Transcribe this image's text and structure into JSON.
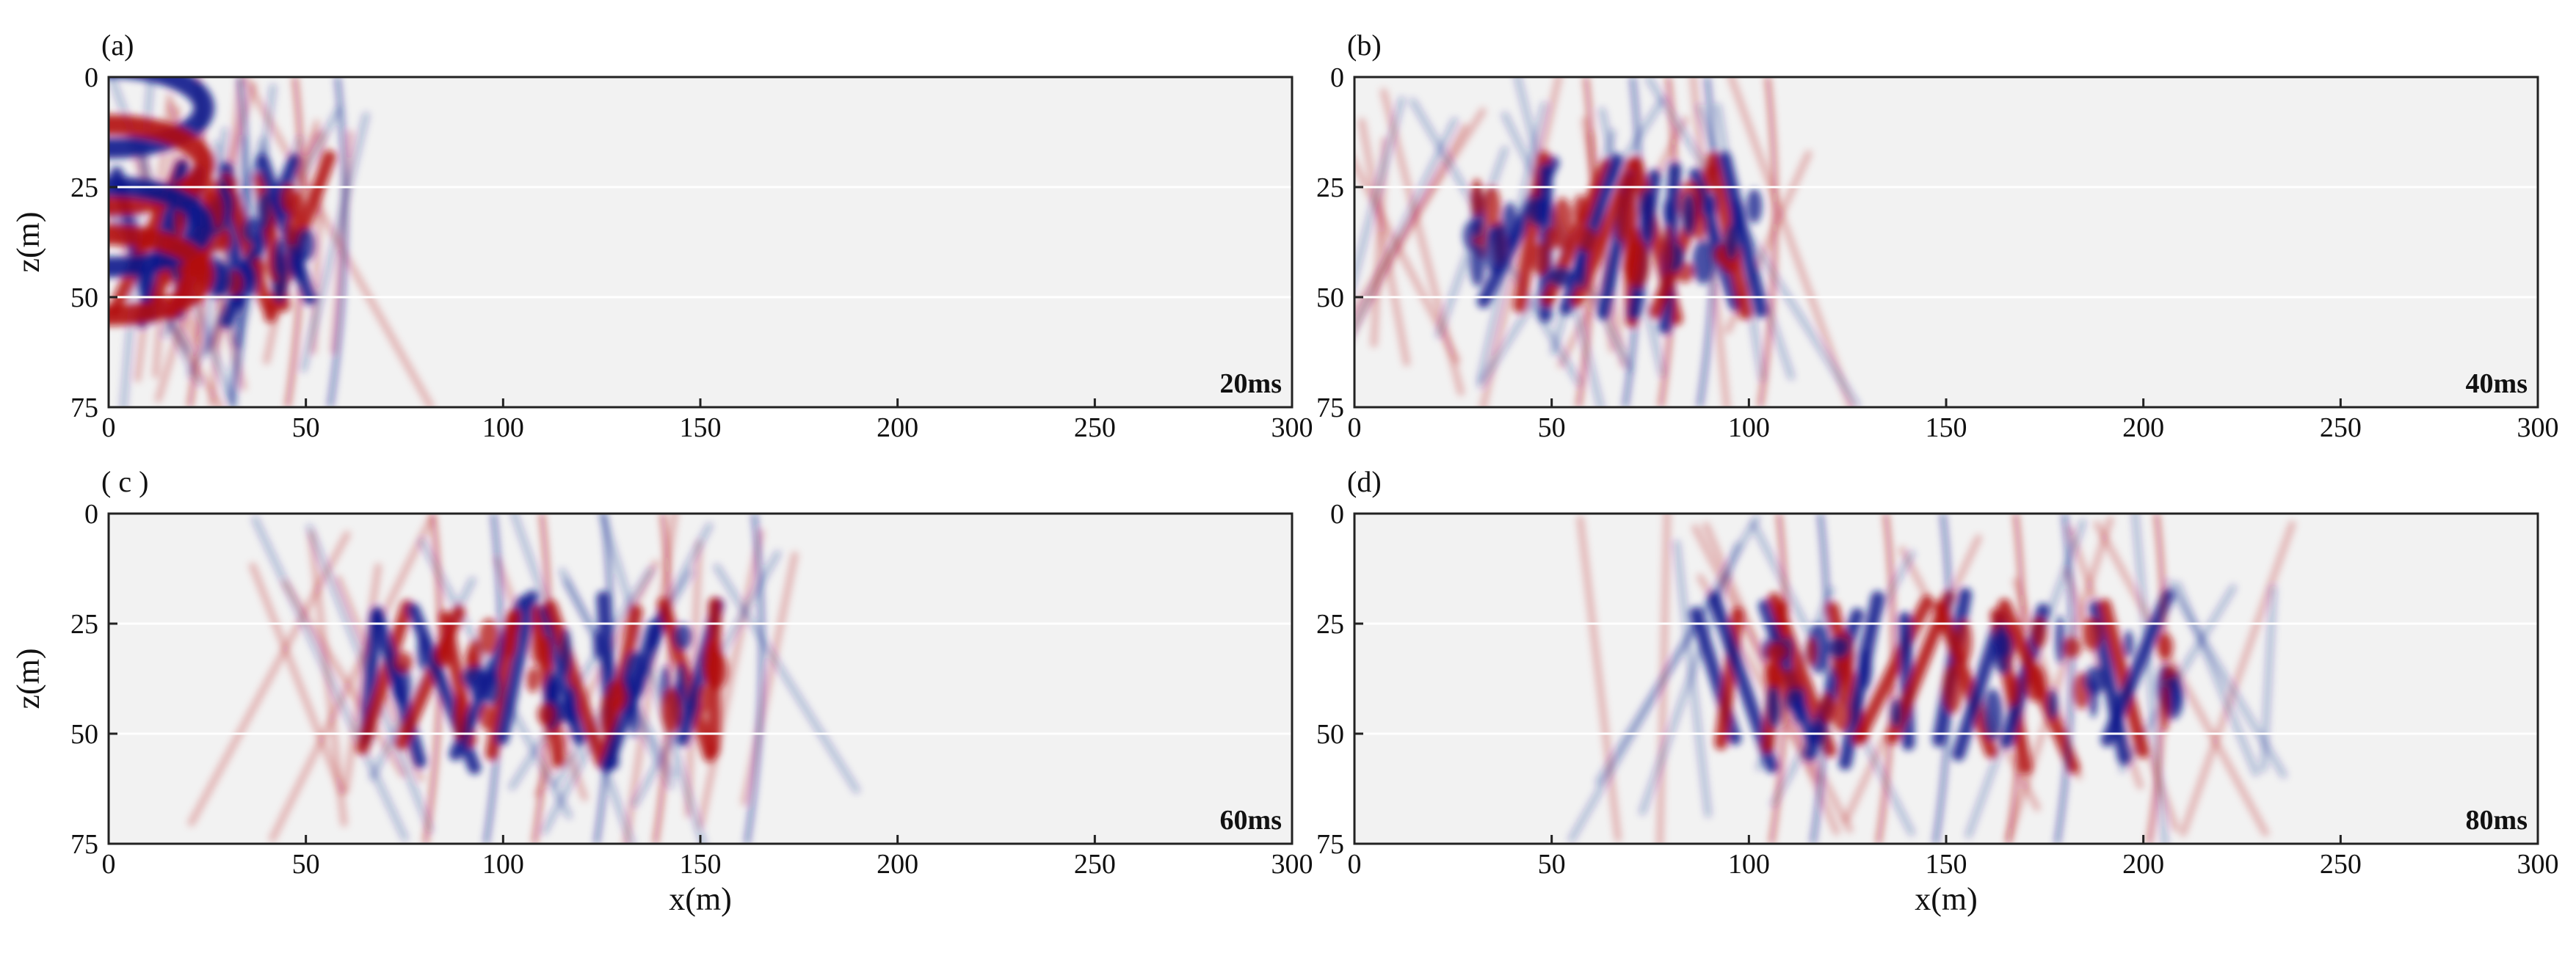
{
  "chart_data": [
    {
      "type": "heatmap",
      "panel": "(a)",
      "time_label": "20ms",
      "xlabel": "",
      "ylabel": "z(m)",
      "xlim": [
        0,
        300
      ],
      "ylim": [
        0,
        75
      ],
      "y_inverted": true,
      "x_ticks": [
        0,
        50,
        100,
        150,
        200,
        250,
        300
      ],
      "y_ticks": [
        0,
        25,
        50,
        75
      ],
      "layer_interfaces": [
        25,
        50
      ],
      "colormap": [
        "#0a1a8c",
        "#f2f2f2",
        "#b30d12"
      ],
      "wavefront_centers_x": [
        10,
        20,
        35,
        45
      ],
      "wavefront_extent_x": [
        0,
        60
      ]
    },
    {
      "type": "heatmap",
      "panel": "(b)",
      "time_label": "40ms",
      "xlabel": "",
      "ylabel": "",
      "xlim": [
        0,
        300
      ],
      "ylim": [
        0,
        75
      ],
      "y_inverted": true,
      "x_ticks": [
        0,
        50,
        100,
        150,
        200,
        250,
        300
      ],
      "y_ticks": [
        0,
        25,
        50,
        75
      ],
      "layer_interfaces": [
        25,
        50
      ],
      "colormap": [
        "#0a1a8c",
        "#f2f2f2",
        "#b30d12"
      ],
      "wavefront_centers_x": [
        45,
        60,
        70,
        80,
        95
      ],
      "wavefront_extent_x": [
        0,
        120
      ]
    },
    {
      "type": "heatmap",
      "panel": "( c )",
      "time_label": "60ms",
      "xlabel": "x(m)",
      "ylabel": "z(m)",
      "xlim": [
        0,
        300
      ],
      "ylim": [
        0,
        75
      ],
      "y_inverted": true,
      "x_ticks": [
        0,
        50,
        100,
        150,
        200,
        250,
        300
      ],
      "y_ticks": [
        0,
        25,
        50,
        75
      ],
      "layer_interfaces": [
        25,
        50
      ],
      "colormap": [
        "#0a1a8c",
        "#f2f2f2",
        "#b30d12"
      ],
      "wavefront_centers_x": [
        70,
        85,
        100,
        115,
        130,
        150
      ],
      "wavefront_extent_x": [
        40,
        175
      ]
    },
    {
      "type": "heatmap",
      "panel": "(d)",
      "time_label": "80ms",
      "xlabel": "x(m)",
      "ylabel": "",
      "xlim": [
        0,
        300
      ],
      "ylim": [
        0,
        75
      ],
      "y_inverted": true,
      "x_ticks": [
        0,
        50,
        100,
        150,
        200,
        250,
        300
      ],
      "y_ticks": [
        0,
        25,
        50,
        75
      ],
      "layer_interfaces": [
        25,
        50
      ],
      "colormap": [
        "#0a1a8c",
        "#f2f2f2",
        "#b30d12"
      ],
      "wavefront_centers_x": [
        95,
        110,
        125,
        140,
        155,
        170,
        195
      ],
      "wavefront_extent_x": [
        60,
        235
      ]
    }
  ]
}
